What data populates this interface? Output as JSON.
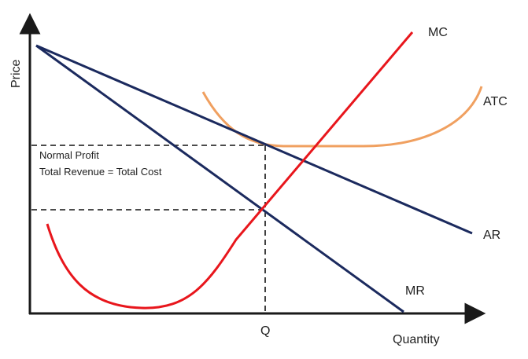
{
  "axes": {
    "y_label": "Price",
    "x_label": "Quantity"
  },
  "curves": {
    "mc": "MC",
    "atc": "ATC",
    "ar": "AR",
    "mr": "MR"
  },
  "annotation": {
    "line1": "Normal Profit",
    "line2": "Total Revenue = Total Cost"
  },
  "quantity_marker": "Q",
  "colors": {
    "axis": "#1a1a1a",
    "mc": "#e8161c",
    "atc": "#f0a060",
    "demand_lines": "#1b2a5e",
    "guide": "#111111"
  }
}
